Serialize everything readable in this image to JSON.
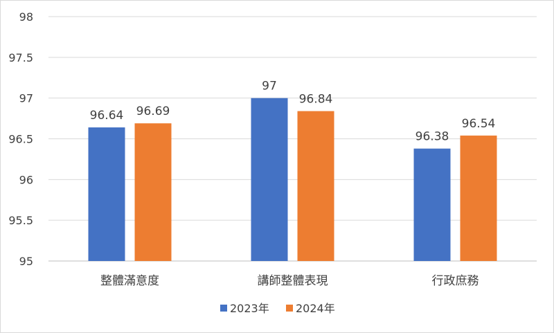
{
  "chart_data": {
    "type": "bar",
    "categories": [
      "整體滿意度",
      "講師整體表現",
      "行政庶務"
    ],
    "series": [
      {
        "name": "2023年",
        "color": "#4472C4",
        "values": [
          96.64,
          97,
          96.38
        ],
        "labels": [
          "96.64",
          "97",
          "96.38"
        ]
      },
      {
        "name": "2024年",
        "color": "#ED7D31",
        "values": [
          96.69,
          96.84,
          96.54
        ],
        "labels": [
          "96.69",
          "96.84",
          "96.54"
        ]
      }
    ],
    "yticks": [
      "95",
      "95.5",
      "96",
      "96.5",
      "97",
      "97.5",
      "98"
    ],
    "ylim": [
      95,
      98
    ],
    "grid": true,
    "legend_position": "bottom"
  }
}
